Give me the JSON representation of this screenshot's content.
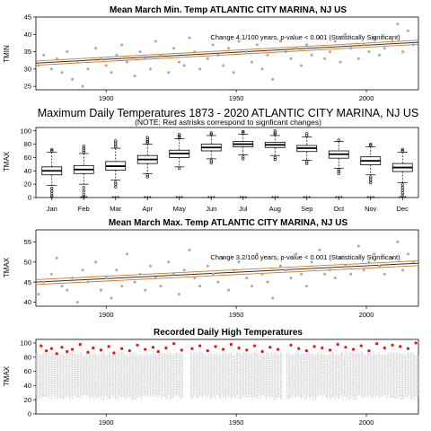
{
  "colors": {
    "trend": "#d07820",
    "points": "#a8a8a8",
    "significant": "#ee1111",
    "box": "#000000"
  },
  "chart_data": [
    {
      "type": "scatter",
      "title": "Mean March Min. Temp ATLANTIC CITY MARINA, NJ US",
      "ylabel": "TMIN",
      "xlabel": "",
      "xlim": [
        1873,
        2020
      ],
      "ylim": [
        24,
        45
      ],
      "xticks": [
        "1900",
        "1950",
        "2000"
      ],
      "yticks": [
        "25",
        "30",
        "35",
        "40",
        "45"
      ],
      "annotation": "Change 4.1/100 years, p-value < 0.001 (Statistically Significant)",
      "trend": {
        "x": [
          1873,
          2020
        ],
        "y": [
          31.7,
          37.7
        ]
      },
      "series": [
        {
          "x": [
            1874,
            1876,
            1879,
            1881,
            1883,
            1885,
            1887,
            1889,
            1891,
            1893,
            1896,
            1898,
            1900,
            1902,
            1904,
            1906,
            1908,
            1911,
            1913,
            1915,
            1917,
            1919,
            1921,
            1924,
            1926,
            1928,
            1930,
            1932,
            1934,
            1936,
            1939,
            1941,
            1943,
            1945,
            1947,
            1949,
            1951,
            1954,
            1956,
            1958,
            1960,
            1962,
            1964,
            1967,
            1969,
            1971,
            1973,
            1975,
            1977,
            1979,
            1982,
            1984,
            1986,
            1988,
            1990,
            1992,
            1994,
            1997,
            1999,
            2001,
            2003,
            2005,
            2007,
            2010,
            2012,
            2014,
            2016,
            2018
          ],
          "y": [
            31,
            34,
            30,
            33,
            29,
            35,
            27,
            32,
            25,
            30,
            36,
            33,
            31,
            29,
            34,
            37,
            32,
            28,
            35,
            33,
            30,
            38,
            34,
            29,
            36,
            32,
            31,
            39,
            35,
            30,
            33,
            37,
            34,
            31,
            36,
            29,
            38,
            35,
            32,
            37,
            30,
            34,
            27,
            38,
            35,
            33,
            36,
            31,
            37,
            34,
            39,
            33,
            35,
            38,
            32,
            40,
            36,
            33,
            37,
            35,
            39,
            34,
            36,
            38,
            43,
            35,
            41,
            37
          ]
        }
      ]
    },
    {
      "type": "box",
      "title": "Maximum Daily Temperatures 1873 - 2020 ATLANTIC CITY MARINA, NJ US",
      "subtitle": "(NOTE: Red astrisks correspond to signficant changes)",
      "ylabel": "TMAX",
      "xlabel": "",
      "ylim": [
        0,
        105
      ],
      "yticks": [
        "0",
        "20",
        "40",
        "60",
        "80",
        "100"
      ],
      "categories": [
        "Jan",
        "Feb",
        "Mar",
        "Apr",
        "May",
        "Jun",
        "Jul",
        "Aug",
        "Sep",
        "Oct",
        "Nov",
        "Dec"
      ],
      "stats": [
        {
          "min": 18,
          "q1": 34,
          "median": 40,
          "q3": 46,
          "max": 68,
          "outliers_high": [
            70,
            72
          ],
          "outliers_low": [
            14,
            10,
            6,
            2
          ]
        },
        {
          "min": 20,
          "q1": 36,
          "median": 42,
          "q3": 48,
          "max": 66,
          "outliers_high": [
            68,
            71,
            74,
            77
          ],
          "outliers_low": [
            15,
            10,
            5,
            1
          ]
        },
        {
          "min": 26,
          "q1": 41,
          "median": 47,
          "q3": 54,
          "max": 74,
          "outliers_high": [
            76,
            79,
            82,
            85
          ],
          "outliers_low": [
            23,
            20,
            16
          ]
        },
        {
          "min": 36,
          "q1": 51,
          "median": 57,
          "q3": 63,
          "max": 80,
          "outliers_high": [
            82,
            84,
            87,
            90
          ],
          "outliers_low": [
            34,
            31
          ]
        },
        {
          "min": 46,
          "q1": 60,
          "median": 66,
          "q3": 71,
          "max": 88,
          "outliers_high": [
            90,
            92,
            95
          ],
          "outliers_low": [
            44
          ]
        },
        {
          "min": 58,
          "q1": 70,
          "median": 75,
          "q3": 80,
          "max": 93,
          "outliers_high": [
            95,
            97
          ],
          "outliers_low": [
            55,
            52
          ]
        },
        {
          "min": 64,
          "q1": 76,
          "median": 80,
          "q3": 84,
          "max": 95,
          "outliers_high": [
            97,
            99
          ],
          "outliers_low": [
            61,
            58
          ]
        },
        {
          "min": 63,
          "q1": 75,
          "median": 79,
          "q3": 83,
          "max": 93,
          "outliers_high": [
            95,
            97,
            100
          ],
          "outliers_low": [
            60,
            57
          ]
        },
        {
          "min": 56,
          "q1": 69,
          "median": 74,
          "q3": 78,
          "max": 91,
          "outliers_high": [
            93,
            96
          ],
          "outliers_low": [
            54,
            51
          ]
        },
        {
          "min": 44,
          "q1": 59,
          "median": 65,
          "q3": 70,
          "max": 84,
          "outliers_high": [
            86
          ],
          "outliers_low": [
            42,
            39,
            36
          ]
        },
        {
          "min": 34,
          "q1": 49,
          "median": 55,
          "q3": 61,
          "max": 76,
          "outliers_high": [
            78,
            80
          ],
          "outliers_low": [
            31,
            28,
            25,
            22
          ]
        },
        {
          "min": 22,
          "q1": 39,
          "median": 45,
          "q3": 51,
          "max": 68,
          "outliers_high": [
            70,
            72
          ],
          "outliers_low": [
            19,
            15,
            11,
            7,
            3
          ]
        }
      ],
      "significant": [
        {
          "month": "Jan",
          "marks": "*"
        },
        {
          "month": "Feb",
          "marks": "***"
        },
        {
          "month": "Mar",
          "marks": "***"
        },
        {
          "month": "Apr",
          "marks": "***"
        },
        {
          "month": "May",
          "marks": "***"
        },
        {
          "month": "Jun",
          "marks": "***"
        },
        {
          "month": "Jul",
          "marks": "***"
        },
        {
          "month": "Aug",
          "marks": "***"
        },
        {
          "month": "Sep",
          "marks": "***"
        },
        {
          "month": "Oct",
          "marks": "***"
        },
        {
          "month": "Nov",
          "marks": "***"
        },
        {
          "month": "Dec",
          "marks": "***"
        }
      ]
    },
    {
      "type": "scatter",
      "title": "Mean March Max. Temp ATLANTIC CITY MARINA, NJ US",
      "ylabel": "TMAX",
      "xlabel": "",
      "xlim": [
        1873,
        2020
      ],
      "ylim": [
        39,
        58
      ],
      "xticks": [
        "1900",
        "1950",
        "2000"
      ],
      "yticks": [
        "40",
        "45",
        "50",
        "55"
      ],
      "annotation": "Change 3.2/100 years, p-value < 0.001 (Statistically Significant)",
      "trend": {
        "x": [
          1873,
          2020
        ],
        "y": [
          45.0,
          49.7
        ]
      },
      "series": [
        {
          "x": [
            1874,
            1876,
            1879,
            1881,
            1883,
            1885,
            1887,
            1889,
            1891,
            1893,
            1896,
            1898,
            1900,
            1902,
            1904,
            1906,
            1908,
            1911,
            1913,
            1915,
            1917,
            1919,
            1921,
            1924,
            1926,
            1928,
            1930,
            1932,
            1934,
            1936,
            1939,
            1941,
            1943,
            1945,
            1947,
            1949,
            1951,
            1954,
            1956,
            1958,
            1960,
            1962,
            1964,
            1967,
            1969,
            1971,
            1973,
            1975,
            1977,
            1979,
            1982,
            1984,
            1986,
            1988,
            1990,
            1992,
            1994,
            1997,
            1999,
            2001,
            2003,
            2005,
            2007,
            2010,
            2012,
            2014,
            2016,
            2018
          ],
          "y": [
            42,
            45,
            47,
            51,
            44,
            43,
            46,
            40,
            48,
            45,
            50,
            43,
            46,
            41,
            48,
            44,
            52,
            45,
            47,
            43,
            49,
            46,
            44,
            50,
            47,
            42,
            48,
            53,
            46,
            44,
            49,
            47,
            45,
            51,
            43,
            48,
            50,
            46,
            44,
            52,
            47,
            45,
            41,
            49,
            48,
            46,
            52,
            47,
            44,
            50,
            53,
            47,
            48,
            46,
            51,
            49,
            47,
            54,
            48,
            50,
            52,
            49,
            47,
            51,
            55,
            48,
            52,
            50
          ]
        }
      ]
    },
    {
      "type": "scatter",
      "title": "Recorded Daily High Temperatures",
      "ylabel": "TMAX",
      "xlabel": "",
      "xlim": [
        1873,
        2020
      ],
      "ylim": [
        0,
        105
      ],
      "xticks": [
        "1900",
        "1950",
        "2000"
      ],
      "yticks": [
        "0",
        "20",
        "40",
        "60",
        "80",
        "100"
      ],
      "band": {
        "low": 20,
        "high": 88
      },
      "gaps": [
        [
          1930,
          1932
        ],
        [
          1968,
          1969
        ]
      ],
      "series": [
        {
          "name": "",
          "x": [
            1875,
            1877,
            1879,
            1881,
            1883,
            1885,
            1887,
            1890,
            1893,
            1895,
            1898,
            1901,
            1903,
            1906,
            1909,
            1912,
            1915,
            1918,
            1920,
            1923,
            1926,
            1929,
            1933,
            1936,
            1939,
            1942,
            1945,
            1948,
            1951,
            1954,
            1957,
            1960,
            1963,
            1966,
            1971,
            1974,
            1977,
            1980,
            1983,
            1986,
            1989,
            1992,
            1995,
            1998,
            2001,
            2004,
            2007,
            2010,
            2013,
            2016,
            2019
          ],
          "y": [
            96,
            89,
            92,
            85,
            94,
            88,
            91,
            98,
            87,
            93,
            90,
            95,
            86,
            92,
            89,
            97,
            91,
            94,
            88,
            93,
            99,
            90,
            92,
            96,
            89,
            95,
            91,
            98,
            93,
            90,
            96,
            88,
            94,
            91,
            97,
            92,
            89,
            95,
            93,
            90,
            98,
            94,
            91,
            96,
            89,
            99,
            93,
            97,
            95,
            92,
            100
          ]
        }
      ]
    }
  ]
}
